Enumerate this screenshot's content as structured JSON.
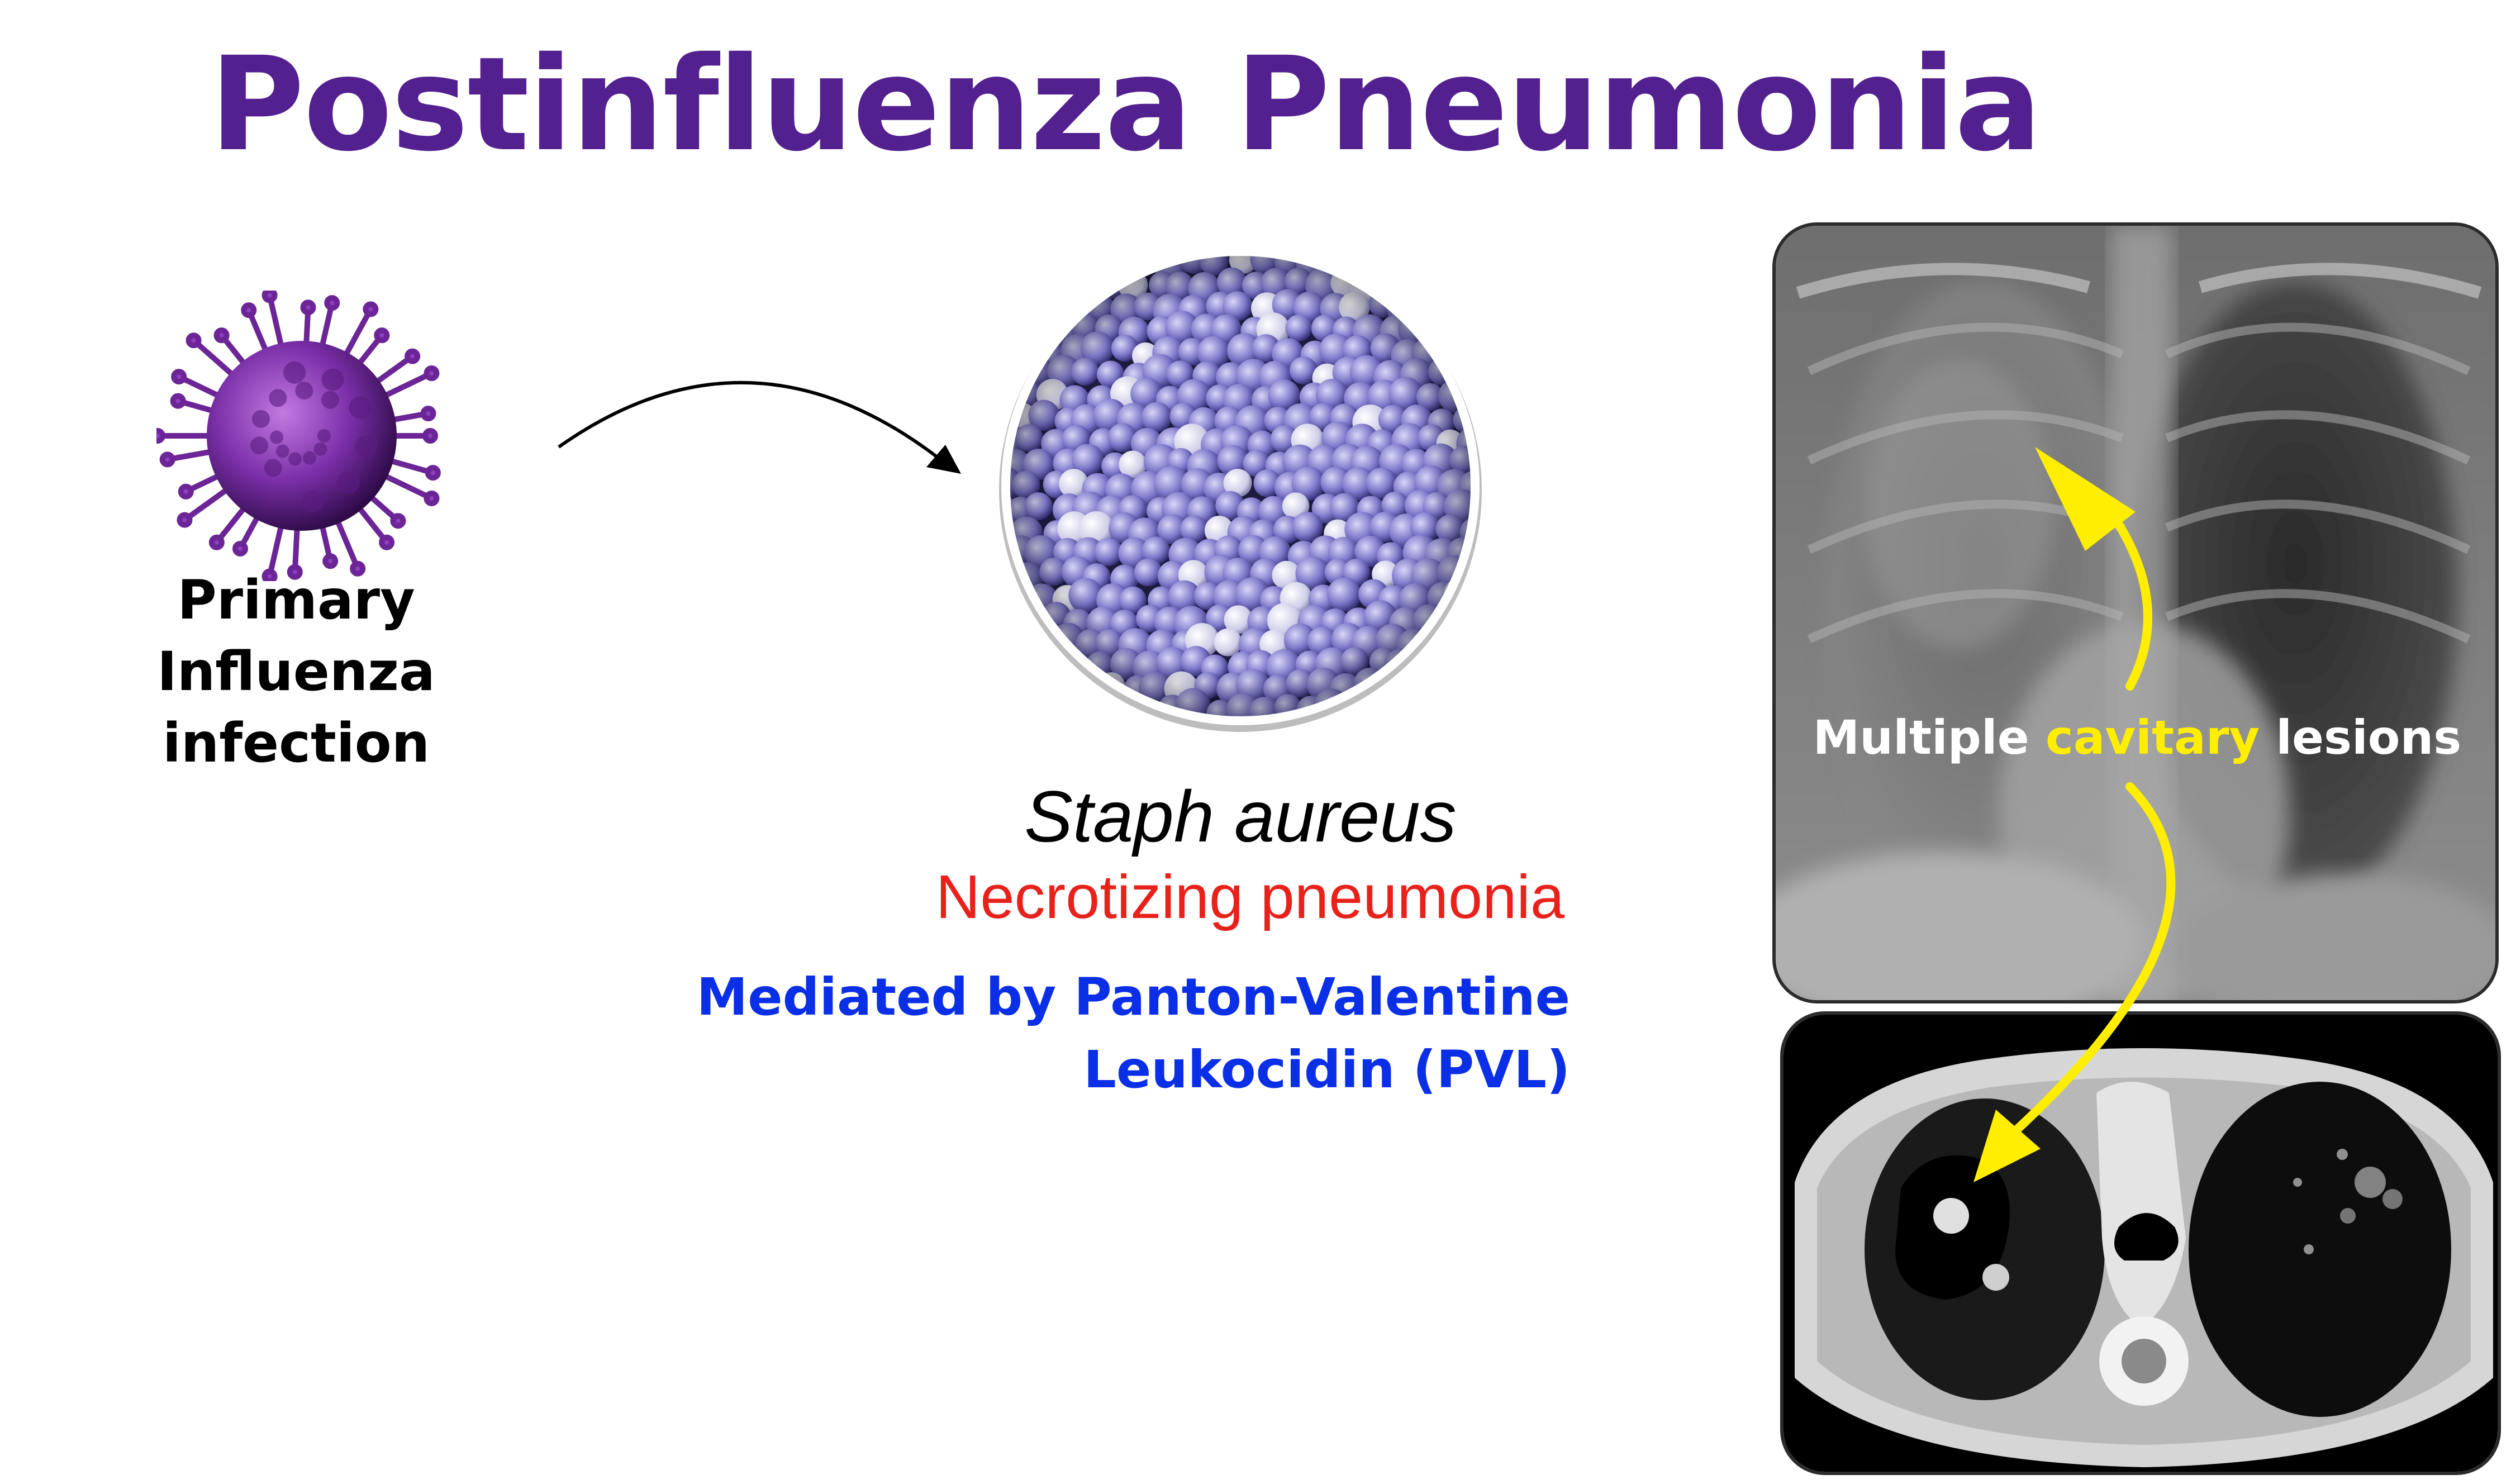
{
  "title": "Postinfluenza Pneumonia",
  "virus": {
    "label_line1": "Primary Influenza",
    "label_line2": "infection",
    "icon": "influenza-virus-icon"
  },
  "flow_arrow_icon": "curved-arrow-icon",
  "bacteria": {
    "name": "Staph aureus",
    "effect": "Necrotizing pneumonia",
    "mechanism_line1": "Mediated by Panton-Valentine",
    "mechanism_line2": "Leukocidin (PVL)",
    "icon": "staphylococcus-micrograph"
  },
  "imaging": {
    "label_prefix": "Multiple ",
    "label_highlight": "cavitary",
    "label_suffix": " lesions",
    "xray_icon": "chest-xray-image",
    "ct_icon": "chest-ct-image"
  },
  "colors": {
    "title": "#53208f",
    "effect": "#e8211a",
    "mechanism": "#0a2fe6",
    "highlight": "#ffee00",
    "virus": "#7a2fa8"
  }
}
